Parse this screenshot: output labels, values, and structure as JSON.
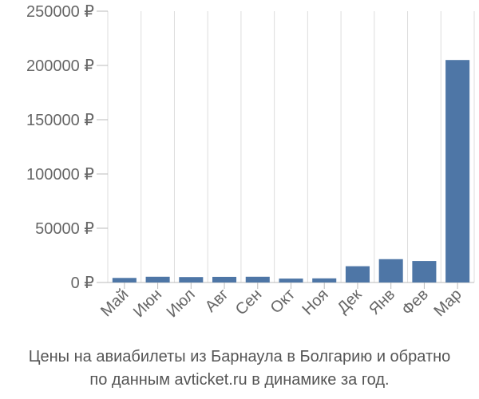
{
  "chart_data": {
    "type": "bar",
    "categories": [
      "Май",
      "Июн",
      "Июл",
      "Авг",
      "Сен",
      "Окт",
      "Ноя",
      "Дек",
      "Янв",
      "Фев",
      "Мар"
    ],
    "values": [
      4200,
      5300,
      5000,
      5200,
      5300,
      3600,
      3800,
      15000,
      21500,
      19800,
      205000
    ],
    "ylim": [
      0,
      250000
    ],
    "yticks": [
      0,
      50000,
      100000,
      150000,
      200000,
      250000
    ],
    "ytick_labels": [
      "0 ₽",
      "50000 ₽",
      "100000 ₽",
      "150000 ₽",
      "200000 ₽",
      "250000 ₽"
    ],
    "grid": "vertical",
    "bar_color": "#4e76a6",
    "title": "Цены на авиабилеты из Барнаула в Болгарию и обратно по данным avticket.ru в динамике за год."
  },
  "caption": {
    "line1": "Цены на авиабилеты из Барнаула в Болгарию и обратно",
    "line2": "по данным avticket.ru в динамике за год."
  }
}
